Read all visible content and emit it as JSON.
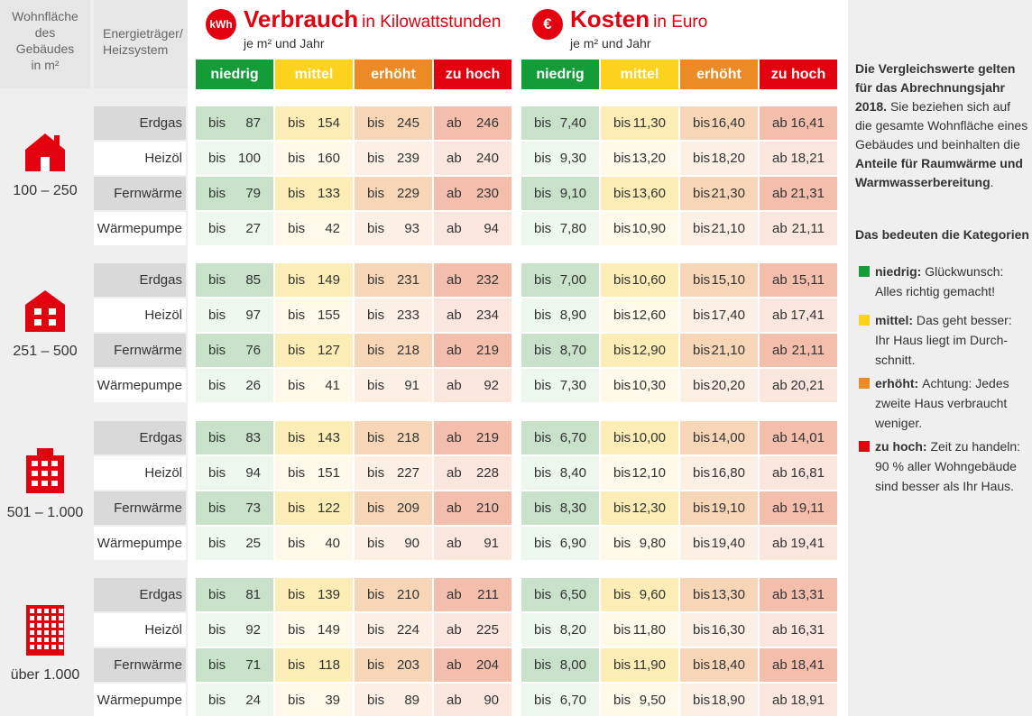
{
  "header": {
    "area_label": [
      "Wohnfläche",
      "des",
      "Gebäudes",
      "in m²"
    ],
    "energy_label": [
      "Energieträger/",
      "Heizsystem"
    ]
  },
  "consumption": {
    "badge": "kWh",
    "title": "Verbrauch",
    "unit": "in Kilowattstunden",
    "subtitle": "je m² und Jahr"
  },
  "costs": {
    "badge": "€",
    "title": "Kosten",
    "unit": "in Euro",
    "subtitle": "je m² und Jahr"
  },
  "categories": [
    "niedrig",
    "mittel",
    "erhöht",
    "zu hoch"
  ],
  "colors": {
    "niedrig": "#139c37",
    "mittel": "#fcd21c",
    "erhoht": "#ec8b26",
    "zuhoch": "#e3000f"
  },
  "groups": [
    {
      "area": "100 – 250",
      "icon": "house-icon",
      "rows": [
        {
          "label": "Erdgas",
          "kwh": [
            "87",
            "154",
            "245",
            "246"
          ],
          "eur": [
            "7,40",
            "11,30",
            "16,40",
            "16,41"
          ]
        },
        {
          "label": "Heizöl",
          "kwh": [
            "100",
            "160",
            "239",
            "240"
          ],
          "eur": [
            "9,30",
            "13,20",
            "18,20",
            "18,21"
          ]
        },
        {
          "label": "Fernwärme",
          "kwh": [
            "79",
            "133",
            "229",
            "230"
          ],
          "eur": [
            "9,10",
            "13,60",
            "21,30",
            "21,31"
          ]
        },
        {
          "label": "Wärmepumpe",
          "kwh": [
            "27",
            "42",
            "93",
            "94"
          ],
          "eur": [
            "7,80",
            "10,90",
            "21,10",
            "21,11"
          ]
        }
      ]
    },
    {
      "area": "251 – 500",
      "icon": "small-building-icon",
      "rows": [
        {
          "label": "Erdgas",
          "kwh": [
            "85",
            "149",
            "231",
            "232"
          ],
          "eur": [
            "7,00",
            "10,60",
            "15,10",
            "15,11"
          ]
        },
        {
          "label": "Heizöl",
          "kwh": [
            "97",
            "155",
            "233",
            "234"
          ],
          "eur": [
            "8,90",
            "12,60",
            "17,40",
            "17,41"
          ]
        },
        {
          "label": "Fernwärme",
          "kwh": [
            "76",
            "127",
            "218",
            "219"
          ],
          "eur": [
            "8,70",
            "12,90",
            "21,10",
            "21,11"
          ]
        },
        {
          "label": "Wärmepumpe",
          "kwh": [
            "26",
            "41",
            "91",
            "92"
          ],
          "eur": [
            "7,30",
            "10,30",
            "20,20",
            "20,21"
          ]
        }
      ]
    },
    {
      "area": "501 – 1.000",
      "icon": "apartment-building-icon",
      "rows": [
        {
          "label": "Erdgas",
          "kwh": [
            "83",
            "143",
            "218",
            "219"
          ],
          "eur": [
            "6,70",
            "10,00",
            "14,00",
            "14,01"
          ]
        },
        {
          "label": "Heizöl",
          "kwh": [
            "94",
            "151",
            "227",
            "228"
          ],
          "eur": [
            "8,40",
            "12,10",
            "16,80",
            "16,81"
          ]
        },
        {
          "label": "Fernwärme",
          "kwh": [
            "73",
            "122",
            "209",
            "210"
          ],
          "eur": [
            "8,30",
            "12,30",
            "19,10",
            "19,11"
          ]
        },
        {
          "label": "Wärmepumpe",
          "kwh": [
            "25",
            "40",
            "90",
            "91"
          ],
          "eur": [
            "6,90",
            "9,80",
            "19,40",
            "19,41"
          ]
        }
      ]
    },
    {
      "area": "über 1.000",
      "icon": "high-rise-icon",
      "rows": [
        {
          "label": "Erdgas",
          "kwh": [
            "81",
            "139",
            "210",
            "211"
          ],
          "eur": [
            "6,50",
            "9,60",
            "13,30",
            "13,31"
          ]
        },
        {
          "label": "Heizöl",
          "kwh": [
            "92",
            "149",
            "224",
            "225"
          ],
          "eur": [
            "8,20",
            "11,80",
            "16,30",
            "16,31"
          ]
        },
        {
          "label": "Fernwärme",
          "kwh": [
            "71",
            "118",
            "203",
            "204"
          ],
          "eur": [
            "8,00",
            "11,90",
            "18,40",
            "18,41"
          ]
        },
        {
          "label": "Wärmepumpe",
          "kwh": [
            "24",
            "39",
            "89",
            "90"
          ],
          "eur": [
            "6,70",
            "9,50",
            "18,90",
            "18,91"
          ]
        }
      ]
    }
  ],
  "prefixes": {
    "low": "bis",
    "high": "ab"
  },
  "side": {
    "intro_bold": "Die Vergleichswerte gelten für das Abrechnungsjahr 2018.",
    "intro_text": "Sie beziehen sich auf die gesamte Wohnfläche eines Gebäudes und beinhalten die",
    "intro_bold2": "Anteile für Raumwärme und Warmwasserbereitung",
    "intro_end": ".",
    "legend_title": "Das bedeuten die Kategorien",
    "legend": [
      {
        "key": "niedrig",
        "label": "niedrig:",
        "text": "Glückwunsch: Alles richtig gemacht!"
      },
      {
        "key": "mittel",
        "label": "mittel:",
        "text": "Das geht besser: Ihr Haus liegt im Durch­schnitt."
      },
      {
        "key": "erhoht",
        "label": "erhöht:",
        "text": "Achtung: Jedes zweite Haus verbraucht weniger."
      },
      {
        "key": "zuhoch",
        "label": "zu hoch:",
        "text": "Zeit zu handeln: 90 % aller Wohngebäude sind besser als Ihr Haus."
      }
    ]
  }
}
